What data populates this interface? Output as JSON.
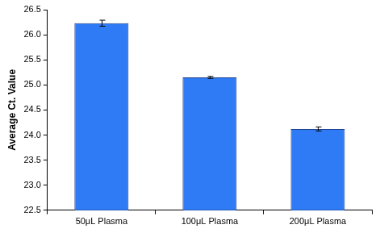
{
  "chart_data": {
    "type": "bar",
    "y_label": "Average Ct. Value",
    "categories": [
      "50μL Plasma",
      "100μL Plasma",
      "200μL Plasma"
    ],
    "values": [
      26.23,
      25.15,
      24.12
    ],
    "errors": [
      0.06,
      0.02,
      0.04
    ],
    "color": "#2f7bf5",
    "ylim": [
      22.5,
      26.5
    ],
    "yticks": [
      22.5,
      {
        "value": 23,
        "label": "23.0"
      },
      23.5,
      {
        "value": 24,
        "label": "24.0"
      },
      24.5,
      {
        "value": 25,
        "label": "25.0"
      },
      25.5,
      {
        "value": 26,
        "label": "26.0"
      },
      26.5
    ],
    "grid": false
  }
}
